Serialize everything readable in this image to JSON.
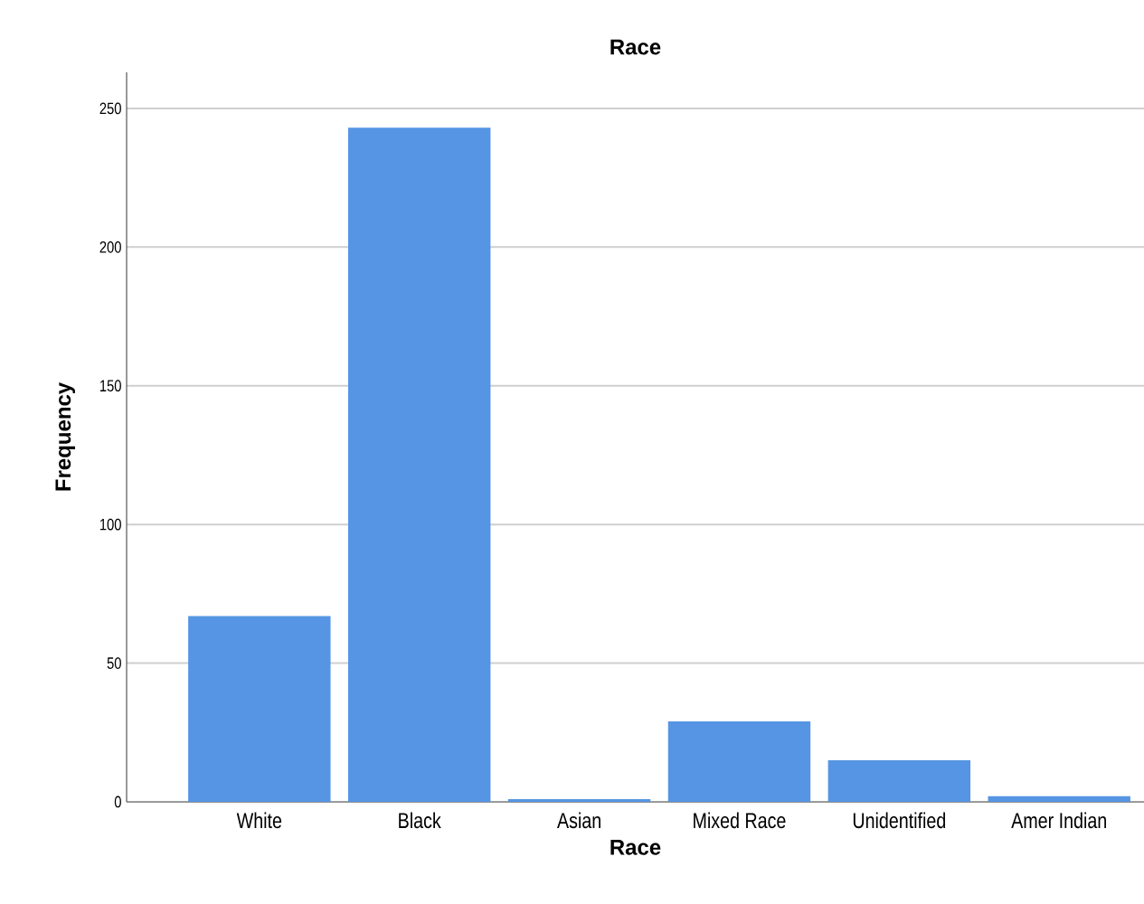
{
  "chart_data": {
    "type": "bar",
    "title": "Race",
    "xlabel": "Race",
    "ylabel": "Frequency",
    "categories": [
      "White",
      "Black",
      "Asian",
      "Mixed Race",
      "Unidentified",
      "Amer Indian"
    ],
    "values": [
      67,
      243,
      1,
      29,
      15,
      2
    ],
    "color": "#5595e3",
    "ylim": [
      0,
      263
    ],
    "yticks": [
      0,
      50,
      100,
      150,
      200,
      250
    ],
    "grid": "y"
  }
}
